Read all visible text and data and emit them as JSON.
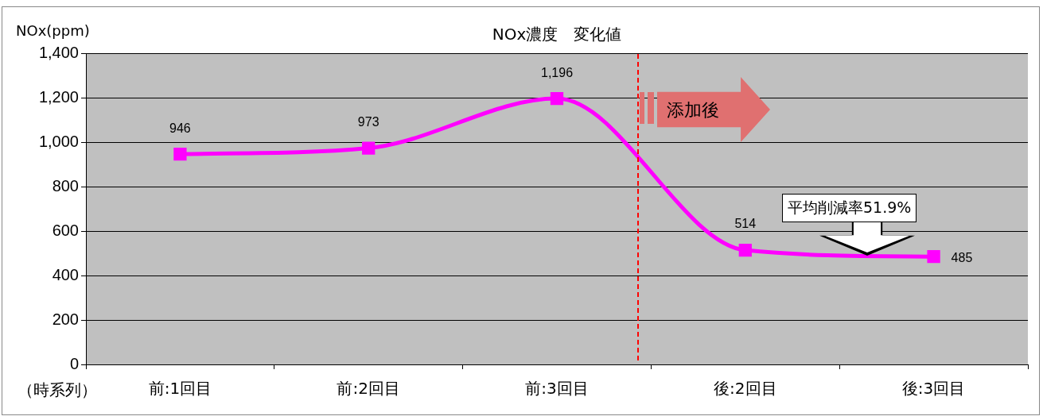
{
  "chart_data": {
    "type": "line",
    "title": "NOx濃度　変化値",
    "ylabel": "NOx(ppm)",
    "xlabel": "（時系列）",
    "categories": [
      "前:1回目",
      "前:2回目",
      "前:3回目",
      "後:2回目",
      "後:3回目"
    ],
    "series": [
      {
        "color": "#ff00ff",
        "values": [
          946,
          973,
          1196,
          514,
          485
        ],
        "value_labels": [
          "946",
          "973",
          "1,196",
          "514",
          "485"
        ]
      }
    ],
    "ylim": [
      0,
      1400
    ],
    "yticks": [
      {
        "value": 0,
        "label": "0"
      },
      {
        "value": 200,
        "label": "200"
      },
      {
        "value": 400,
        "label": "400"
      },
      {
        "value": 600,
        "label": "600"
      },
      {
        "value": 800,
        "label": "800"
      },
      {
        "value": 1000,
        "label": "1,000"
      },
      {
        "value": 1200,
        "label": "1,200"
      },
      {
        "value": 1400,
        "label": "1,400"
      }
    ],
    "grid": "y",
    "legend": false,
    "marker": "square",
    "line_style": "solid",
    "annotations": [
      "添加後",
      "平均削減率51.9%"
    ]
  }
}
